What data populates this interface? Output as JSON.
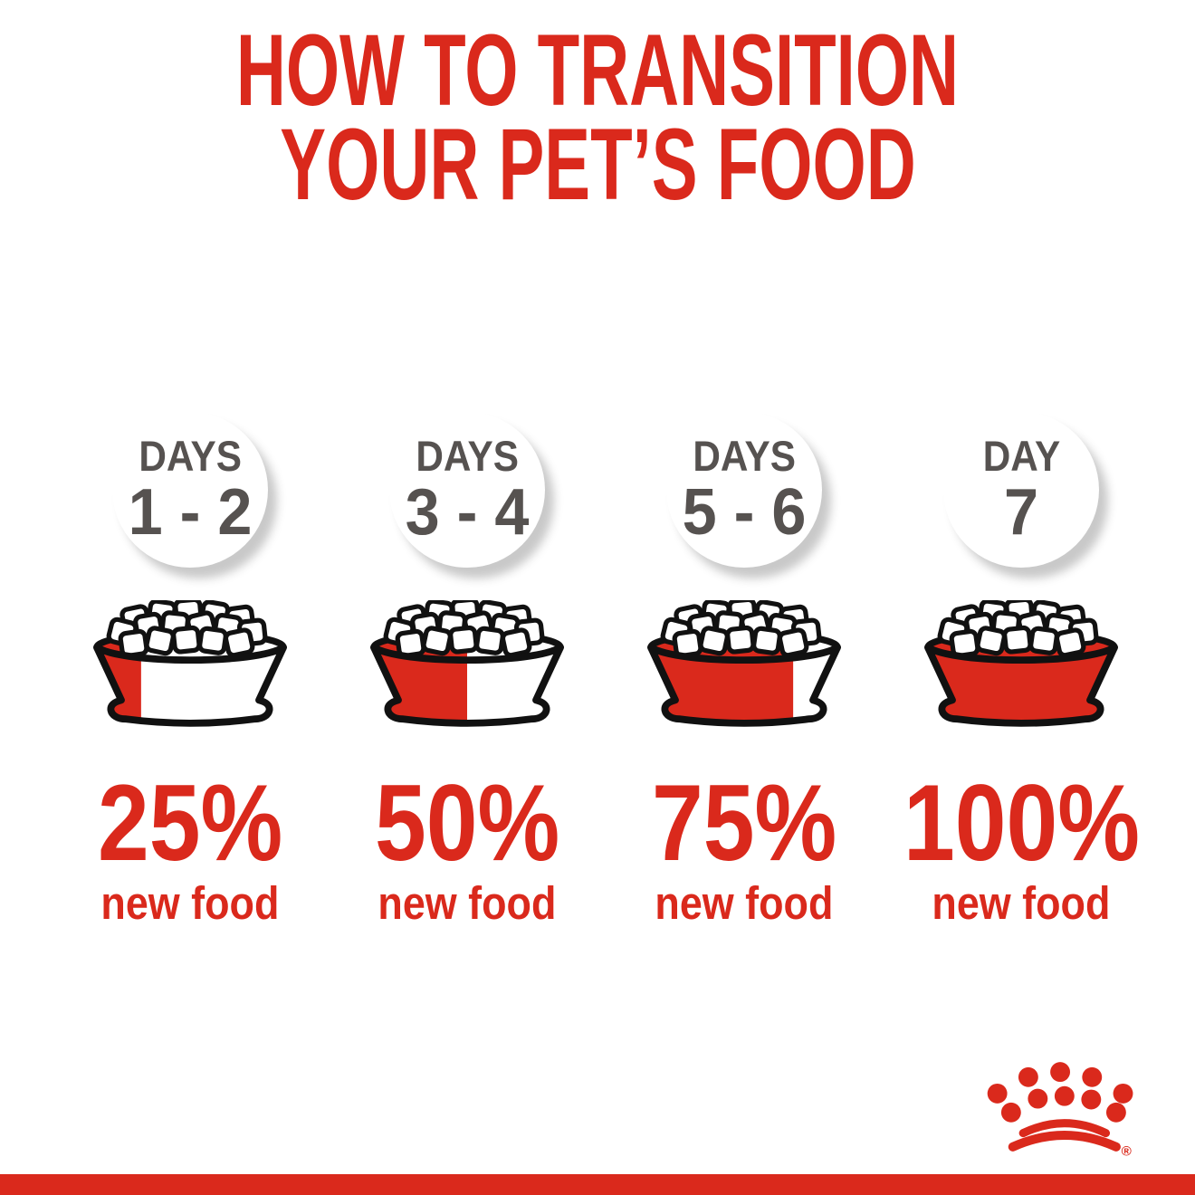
{
  "title": {
    "line1": "HOW TO TRANSITION",
    "line2": "YOUR PET’S FOOD"
  },
  "columns": [
    {
      "days_label": "DAYS",
      "days_range": "1 - 2",
      "new_food_percent": 25,
      "percent_label": "25%",
      "food_label": "new food"
    },
    {
      "days_label": "DAYS",
      "days_range": "3 - 4",
      "new_food_percent": 50,
      "percent_label": "50%",
      "food_label": "new food"
    },
    {
      "days_label": "DAYS",
      "days_range": "5 - 6",
      "new_food_percent": 75,
      "percent_label": "75%",
      "food_label": "new food"
    },
    {
      "days_label": "DAY",
      "days_range": "7",
      "new_food_percent": 100,
      "percent_label": "100%",
      "food_label": "new food"
    }
  ],
  "brand": {
    "logo": "royal-canin-crown",
    "registered_mark": "®"
  },
  "colors": {
    "red": "#DA291C",
    "gray": "#565250",
    "outline": "#111111",
    "background": "#FFFFFF"
  },
  "chart_data": {
    "type": "table",
    "title": "How to transition your pet's food",
    "categories": [
      "Days 1 - 2",
      "Days 3 - 4",
      "Days 5 - 6",
      "Day 7"
    ],
    "values": [
      25,
      50,
      75,
      100
    ],
    "ylabel": "new food (%)"
  }
}
